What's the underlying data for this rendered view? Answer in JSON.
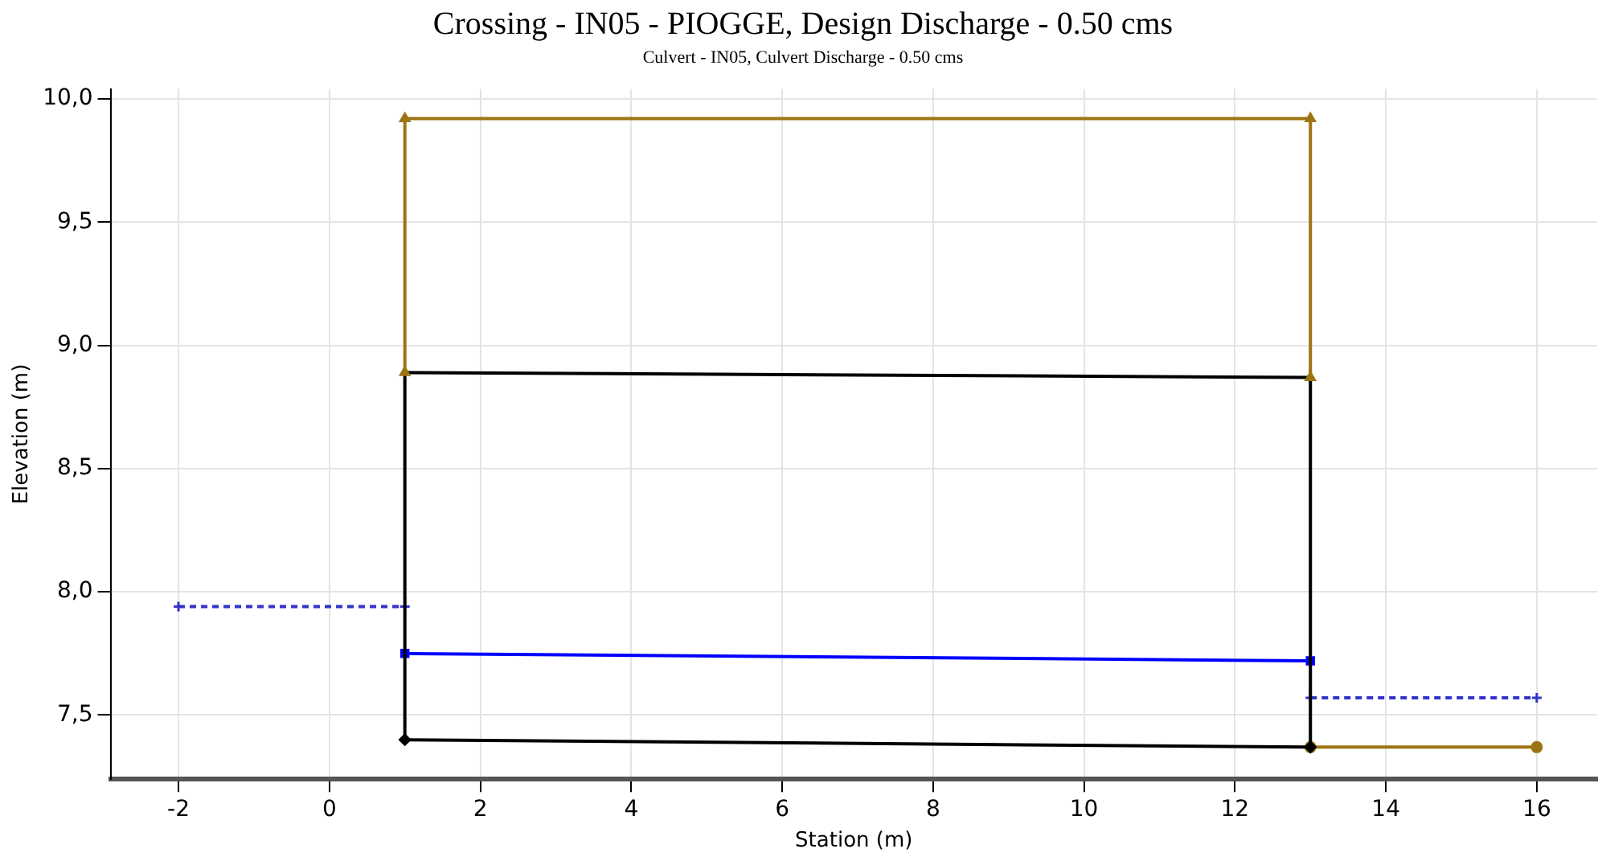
{
  "chart_data": {
    "type": "line",
    "title": "Crossing - IN05 - PIOGGE, Design Discharge - 0.50 cms",
    "subtitle": "Culvert - IN05, Culvert Discharge - 0.50 cms",
    "xlabel": "Station (m)",
    "ylabel": "Elevation (m)",
    "xlim": [
      -2.9,
      16.8
    ],
    "ylim": [
      7.24,
      10.04
    ],
    "xticks": [
      -2,
      0,
      2,
      4,
      6,
      8,
      10,
      12,
      14,
      16
    ],
    "yticks": [
      {
        "value": 7.5,
        "label": "7,5"
      },
      {
        "value": 8.0,
        "label": "8,0"
      },
      {
        "value": 8.5,
        "label": "8,5"
      },
      {
        "value": 9.0,
        "label": "9,0"
      },
      {
        "value": 9.5,
        "label": "9,5"
      },
      {
        "value": 10.0,
        "label": "10,0"
      }
    ],
    "grid": true,
    "legend": false,
    "series": [
      {
        "color": "#9c7411",
        "x": [
          1,
          1,
          13,
          13
        ],
        "values": [
          8.89,
          9.92,
          9.92,
          8.87
        ],
        "marker": "triangle",
        "line_style": "solid"
      },
      {
        "color": "#000000",
        "x": [
          1,
          13
        ],
        "values": [
          8.89,
          8.87
        ],
        "marker": "none",
        "line_style": "solid"
      },
      {
        "color": "#000000",
        "x": [
          1,
          13
        ],
        "values": [
          7.4,
          7.37
        ],
        "marker": "diamond",
        "line_style": "solid"
      },
      {
        "color": "#000000",
        "x": [
          1,
          1
        ],
        "values": [
          7.4,
          8.89
        ],
        "marker": "none",
        "line_style": "solid"
      },
      {
        "color": "#000000",
        "x": [
          13,
          13
        ],
        "values": [
          7.37,
          8.87
        ],
        "marker": "none",
        "line_style": "solid"
      },
      {
        "color": "#0000ff",
        "x": [
          1,
          13
        ],
        "values": [
          7.75,
          7.72
        ],
        "marker": "square",
        "line_style": "solid"
      },
      {
        "color": "#3333cc",
        "x": [
          -2,
          1
        ],
        "values": [
          7.94,
          7.94
        ],
        "marker": "cross",
        "line_style": "dashed"
      },
      {
        "color": "#3333cc",
        "x": [
          13,
          16
        ],
        "values": [
          7.57,
          7.57
        ],
        "marker": "cross",
        "line_style": "dashed"
      },
      {
        "color": "#9c7411",
        "x": [
          13,
          16
        ],
        "values": [
          7.37,
          7.37
        ],
        "marker": "circle",
        "line_style": "solid"
      }
    ]
  }
}
